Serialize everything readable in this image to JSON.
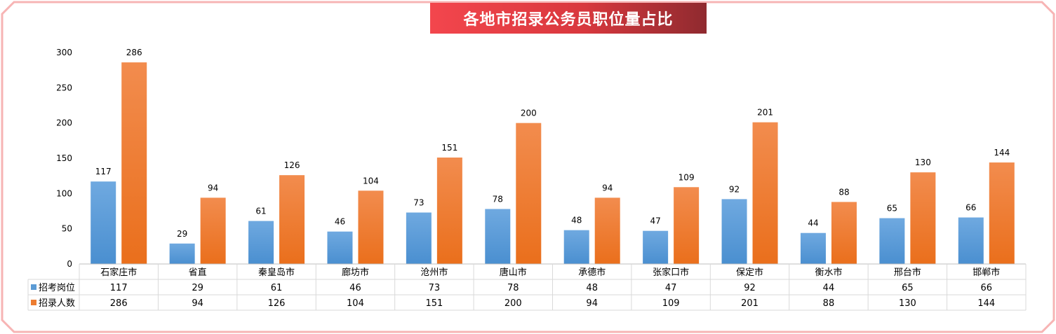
{
  "title": "各地市招录公务员职位量占比",
  "colors": {
    "series_1": "#5b9bd5",
    "series_2": "#ed7d31",
    "title_bg_start": "#f3464d",
    "title_bg_end": "#8f2a2f",
    "frame": "#f7b4b4"
  },
  "chart_data": {
    "type": "bar",
    "title": "各地市招录公务员职位量占比",
    "categories": [
      "石家庄市",
      "省直",
      "秦皇岛市",
      "廊坊市",
      "沧州市",
      "唐山市",
      "承德市",
      "张家口市",
      "保定市",
      "衡水市",
      "邢台市",
      "邯郸市"
    ],
    "series": [
      {
        "name": "招考岗位",
        "values": [
          117,
          29,
          61,
          46,
          73,
          78,
          48,
          47,
          92,
          44,
          65,
          66
        ]
      },
      {
        "name": "招录人数",
        "values": [
          286,
          94,
          126,
          104,
          151,
          200,
          94,
          109,
          201,
          88,
          130,
          144
        ]
      }
    ],
    "ylim": [
      0,
      300
    ],
    "yticks": [
      0,
      50,
      100,
      150,
      200,
      250,
      300
    ],
    "grid": false,
    "legend": "data-table",
    "data_labels": true
  }
}
